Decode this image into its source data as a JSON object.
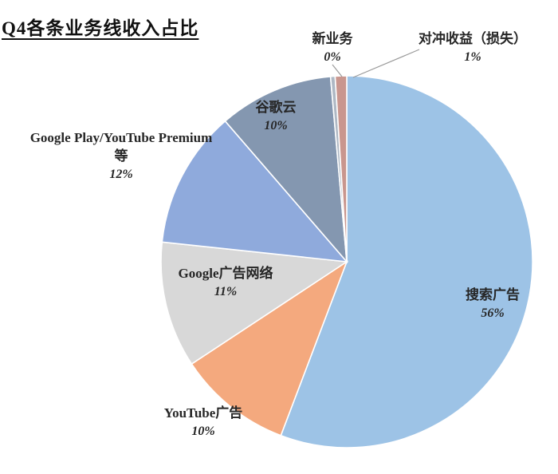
{
  "title": "Q4各条业务线收入占比",
  "chart_data": {
    "type": "pie",
    "title": "Q4各条业务线收入占比",
    "start_angle_deg": 0,
    "clockwise": true,
    "legend": "none",
    "label_style": "outside-and-inside, name + percent",
    "slices": [
      {
        "id": "search-ads",
        "label": "搜索广告",
        "pct": 56,
        "pct_label": "56%",
        "weight": 56,
        "color": "#9DC3E6"
      },
      {
        "id": "youtube-ads",
        "label": "YouTube广告",
        "pct": 10,
        "pct_label": "10%",
        "weight": 10,
        "color": "#F4A97E"
      },
      {
        "id": "google-ad-network",
        "label": "Google广告网络",
        "pct": 11,
        "pct_label": "11%",
        "weight": 11,
        "color": "#D8D8D8"
      },
      {
        "id": "google-play-premium",
        "label": "Google Play/YouTube Premium等",
        "pct": 12,
        "pct_label": "12%",
        "weight": 12,
        "color": "#8FAADC"
      },
      {
        "id": "google-cloud",
        "label": "谷歌云",
        "pct": 10,
        "pct_label": "10%",
        "weight": 10,
        "color": "#8497B0"
      },
      {
        "id": "new-business",
        "label": "新业务",
        "pct": 0,
        "pct_label": "0%",
        "weight": 0.4,
        "color": "#AEB8C4"
      },
      {
        "id": "hedge-gain-loss",
        "label": "对冲收益（损失）",
        "pct": 1,
        "pct_label": "1%",
        "weight": 1,
        "color": "#C9968E"
      }
    ]
  }
}
